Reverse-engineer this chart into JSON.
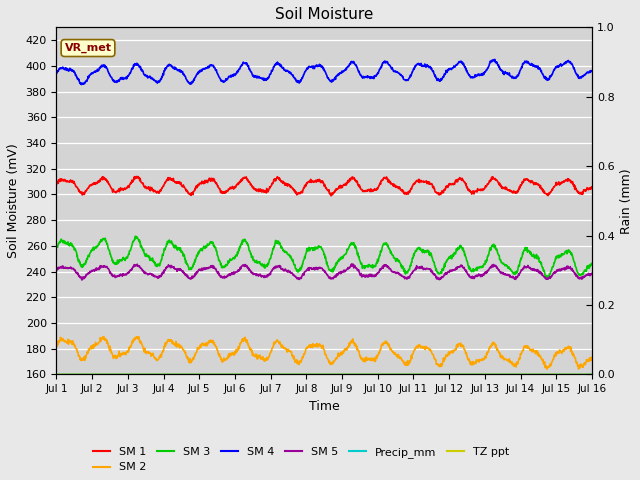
{
  "title": "Soil Moisture",
  "xlabel": "Time",
  "ylabel_left": "Soil Moisture (mV)",
  "ylabel_right": "Rain (mm)",
  "ylim_left": [
    160,
    430
  ],
  "ylim_right": [
    0.0,
    1.0
  ],
  "yticks_left": [
    160,
    180,
    200,
    220,
    240,
    260,
    280,
    300,
    320,
    340,
    360,
    380,
    400,
    420
  ],
  "yticks_right": [
    0.0,
    0.2,
    0.4,
    0.6,
    0.8,
    1.0
  ],
  "xtick_labels": [
    "Jul 1",
    "Jul 2",
    "Jul 3",
    "Jul 4",
    "Jul 5",
    "Jul 6",
    "Jul 7",
    "Jul 8",
    "Jul 9",
    "Jul 10",
    "Jul 11",
    "Jul 12",
    "Jul 13",
    "Jul 14",
    "Jul 15",
    "Jul 16"
  ],
  "n_points": 1440,
  "sm1_base": 307,
  "sm1_amp": 5,
  "sm1_freq": 15,
  "sm2_base": 181,
  "sm2_amp": 7,
  "sm2_freq": 15,
  "sm3_base": 256,
  "sm3_amp": 9,
  "sm3_freq": 15,
  "sm4_base": 393,
  "sm4_amp": 6,
  "sm4_freq": 15,
  "sm5_base": 240,
  "sm5_amp": 4,
  "sm5_freq": 15,
  "sm1_color": "#ff0000",
  "sm2_color": "#ffa500",
  "sm3_color": "#00cc00",
  "sm4_color": "#0000ff",
  "sm5_color": "#990099",
  "precip_color": "#00cccc",
  "tz_color": "#cccc00",
  "bg_color": "#e8e8e8",
  "plot_bg": "#d4d4d4",
  "vr_met_text": "VR_met",
  "vr_met_bg": "#ffffcc",
  "vr_met_fg": "#880000",
  "legend_items": [
    "SM 1",
    "SM 2",
    "SM 3",
    "SM 4",
    "SM 5",
    "Precip_mm",
    "TZ ppt"
  ],
  "legend_colors": [
    "#ff0000",
    "#ffa500",
    "#00cc00",
    "#0000ff",
    "#990099",
    "#00cccc",
    "#cccc00"
  ]
}
